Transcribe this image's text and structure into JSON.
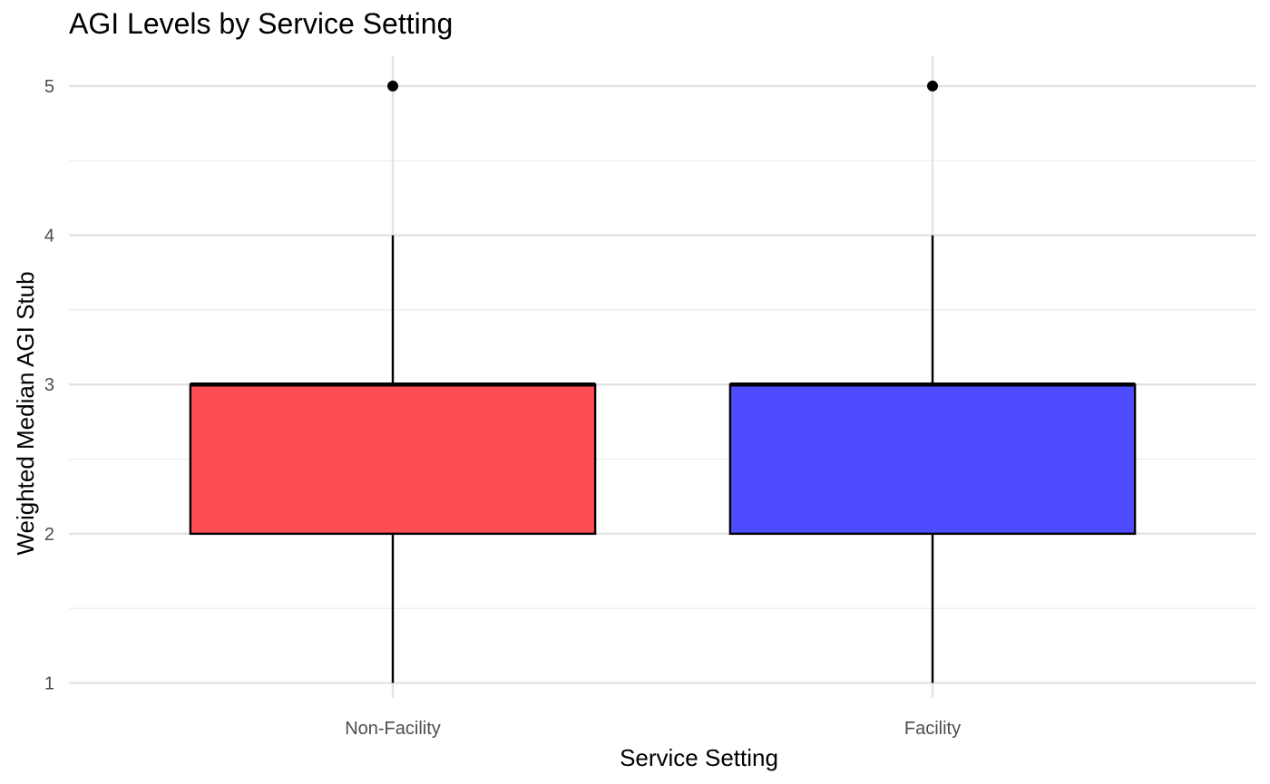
{
  "chart_data": {
    "type": "boxplot",
    "title": "AGI Levels by Service Setting",
    "xlabel": "Service Setting",
    "ylabel": "Weighted Median AGI Stub",
    "categories": [
      "Non-Facility",
      "Facility"
    ],
    "ylim": [
      0.9,
      5.2
    ],
    "yticks": [
      1,
      2,
      3,
      4,
      5
    ],
    "grid": true,
    "legend": "none",
    "boxes": [
      {
        "category": "Non-Facility",
        "whisker_low": 1,
        "q1": 2,
        "median": 3,
        "q3": 3,
        "whisker_high": 4,
        "outliers": [
          5
        ],
        "color": "#ff4d55"
      },
      {
        "category": "Facility",
        "whisker_low": 1,
        "q1": 2,
        "median": 3,
        "q3": 3,
        "whisker_high": 4,
        "outliers": [
          5
        ],
        "color": "#4d4dff"
      }
    ]
  }
}
